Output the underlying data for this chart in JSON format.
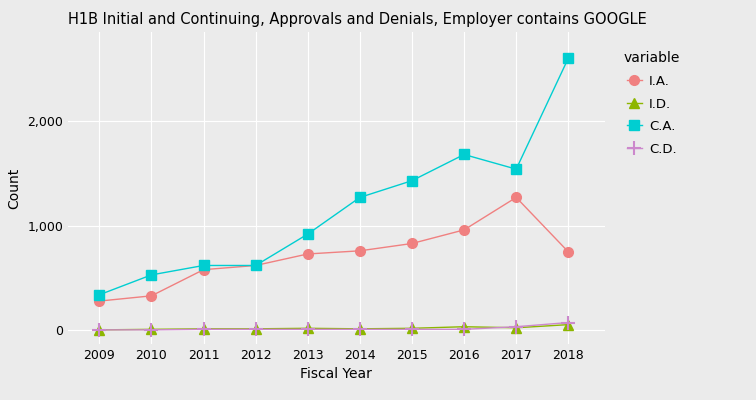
{
  "title": "H1B Initial and Continuing, Approvals and Denials, Employer contains GOOGLE",
  "xlabel": "Fiscal Year",
  "ylabel": "Count",
  "years": [
    2009,
    2010,
    2011,
    2012,
    2013,
    2014,
    2015,
    2016,
    2017,
    2018
  ],
  "IA": [
    280,
    330,
    580,
    620,
    730,
    760,
    830,
    960,
    1270,
    750
  ],
  "ID": [
    5,
    10,
    15,
    15,
    20,
    15,
    20,
    35,
    25,
    55
  ],
  "CA": [
    340,
    530,
    620,
    620,
    920,
    1270,
    1430,
    1680,
    1540,
    2600
  ],
  "CD": [
    5,
    5,
    10,
    10,
    10,
    10,
    10,
    10,
    35,
    75
  ],
  "color_IA": "#f08080",
  "color_ID": "#8db600",
  "color_CA": "#00ced1",
  "color_CD": "#cc88cc",
  "marker_IA": "o",
  "marker_ID": "^",
  "marker_CA": "s",
  "marker_CD": "P",
  "bg_color": "#ebebeb",
  "panel_bg": "#ebebeb",
  "legend_title": "variable",
  "legend_labels": [
    "I.A.",
    "I.D.",
    "C.A.",
    "C.D."
  ],
  "ylim": [
    -130,
    2850
  ],
  "yticks": [
    0,
    1000,
    2000
  ],
  "title_fontsize": 10.5,
  "axis_fontsize": 10,
  "tick_fontsize": 9,
  "legend_fontsize": 9.5,
  "legend_title_fontsize": 10
}
